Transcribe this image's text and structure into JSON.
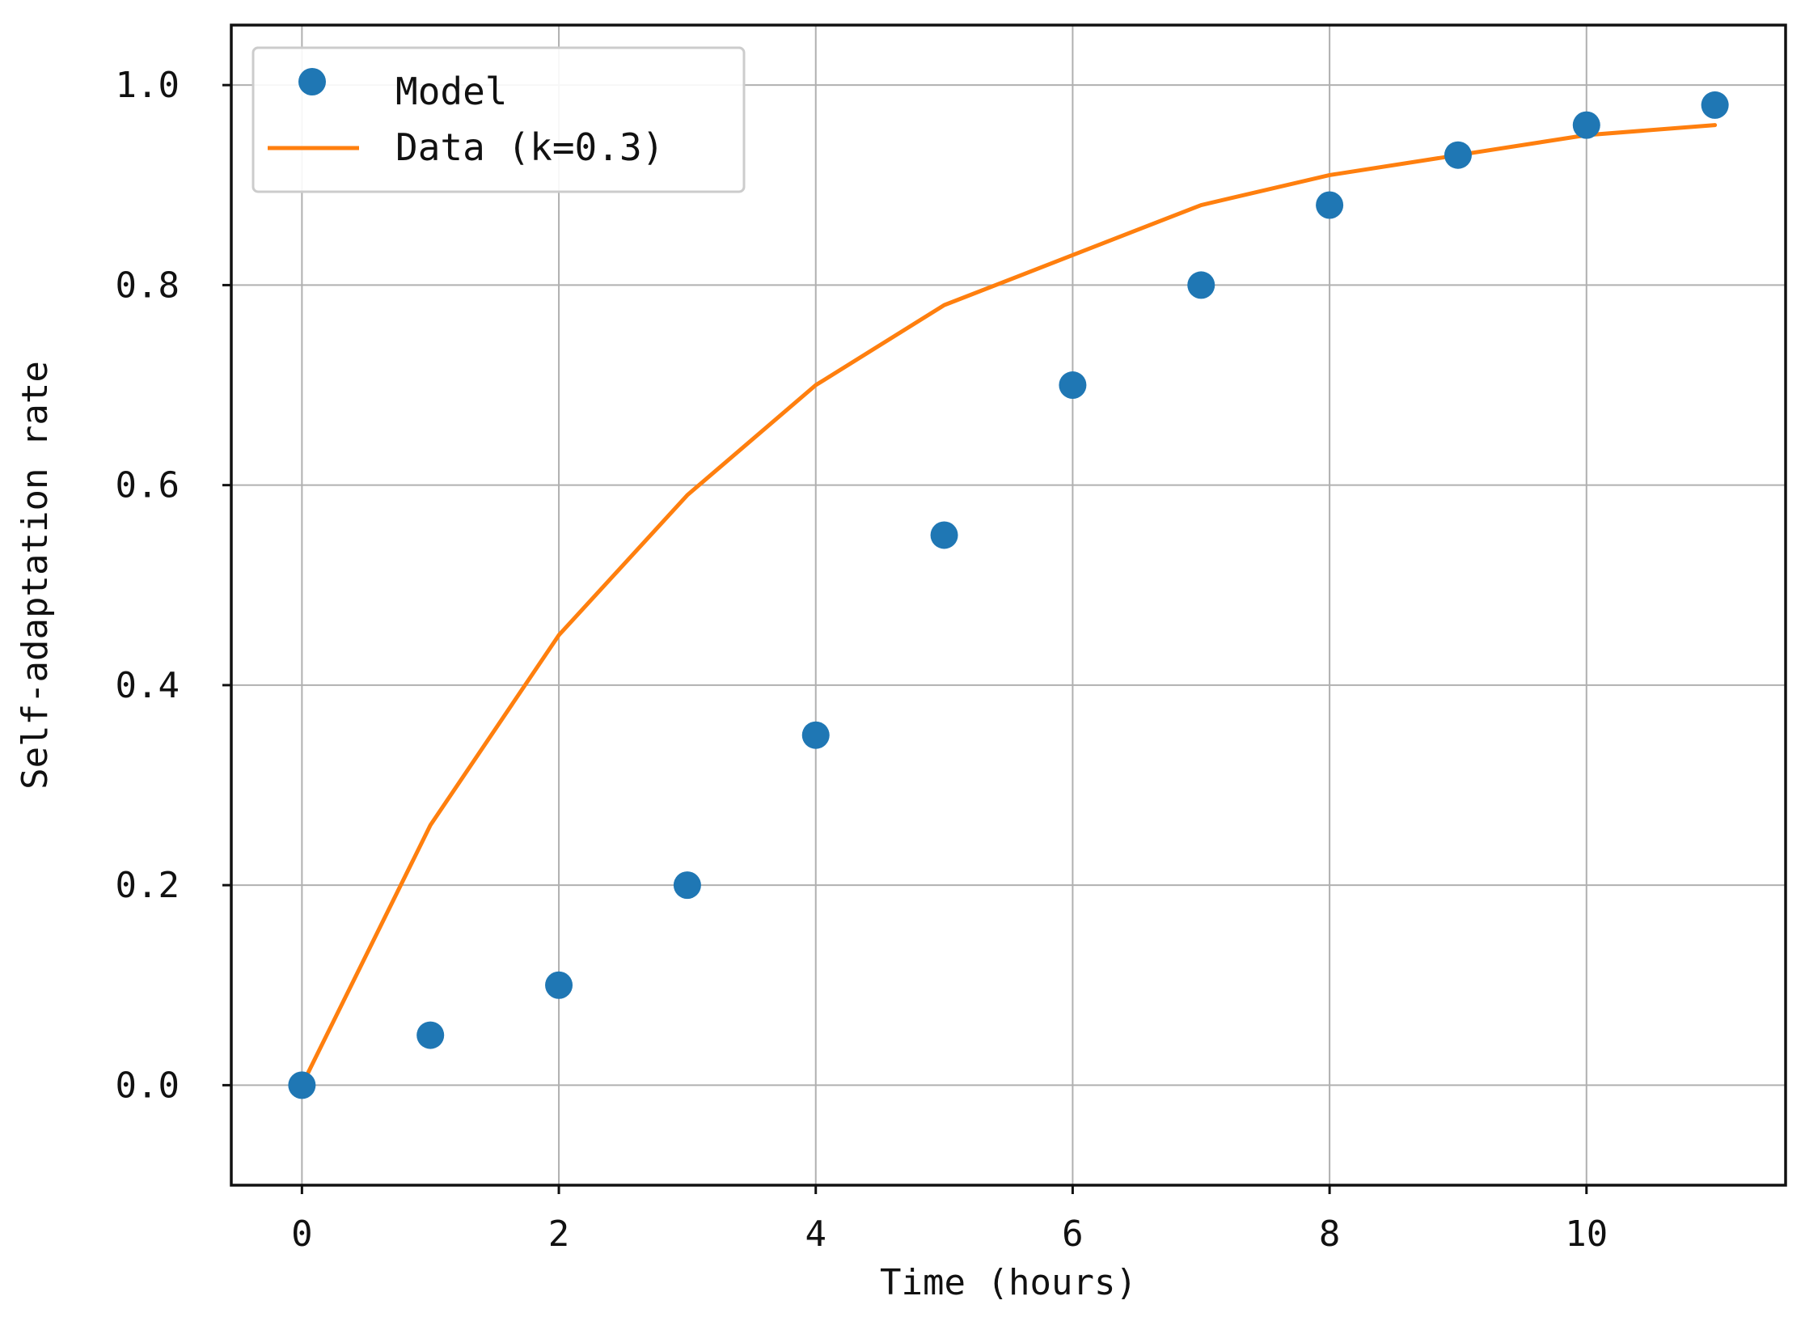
{
  "chart_data": {
    "type": "line",
    "x_label": "Time (hours)",
    "y_label": "Self-adaptation rate",
    "xlim": [
      -0.55,
      11.55
    ],
    "ylim": [
      -0.1,
      1.06
    ],
    "x_ticks": [
      0,
      2,
      4,
      6,
      8,
      10
    ],
    "y_ticks": [
      0.0,
      0.2,
      0.4,
      0.6,
      0.8,
      1.0
    ],
    "x_tick_labels": [
      "0",
      "2",
      "4",
      "6",
      "8",
      "10"
    ],
    "y_tick_labels": [
      "0.0",
      "0.2",
      "0.4",
      "0.6",
      "0.8",
      "1.0"
    ],
    "grid": true,
    "legend_position": "top-left",
    "series": [
      {
        "name": "Model",
        "type": "scatter",
        "color": "#1f77b4",
        "x": [
          0,
          1,
          2,
          3,
          4,
          5,
          6,
          7,
          8,
          9,
          10,
          11
        ],
        "y": [
          0.0,
          0.05,
          0.1,
          0.2,
          0.35,
          0.55,
          0.7,
          0.8,
          0.88,
          0.93,
          0.96,
          0.98
        ]
      },
      {
        "name": "Data (k=0.3)",
        "type": "line",
        "color": "#ff7f0e",
        "x": [
          0,
          1,
          2,
          3,
          4,
          5,
          6,
          7,
          8,
          9,
          10,
          11
        ],
        "y": [
          0.0,
          0.26,
          0.45,
          0.59,
          0.7,
          0.78,
          0.83,
          0.88,
          0.91,
          0.93,
          0.95,
          0.96
        ]
      }
    ]
  }
}
